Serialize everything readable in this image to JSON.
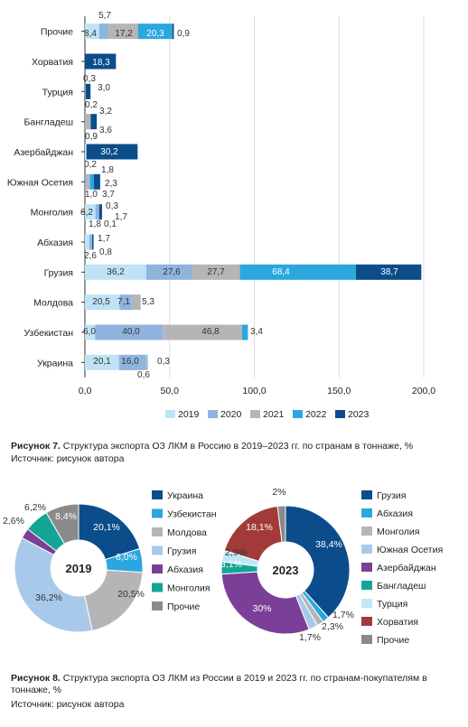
{
  "figure7": {
    "caption_label": "Рисунок 7.",
    "caption_text": "Структура экспорта ОЗ ЛКМ в Россию в 2019–2023 гг. по странам в тоннаже, %",
    "source": "Источник: рисунок автора"
  },
  "figure8": {
    "caption_label": "Рисунок 8.",
    "caption_text": "Структура экспорта ОЗ ЛКМ из России в 2019 и 2023 гг. по странам-покупателям в тоннаже, %",
    "source": "Источник: рисунок автора"
  },
  "chart_data": [
    {
      "type": "bar",
      "orientation": "horizontal",
      "stacked": true,
      "categories": [
        "Прочие",
        "Хорватия",
        "Турция",
        "Бангладеш",
        "Азербайджан",
        "Южная Осетия",
        "Монголия",
        "Абхазия",
        "Грузия",
        "Молдова",
        "Узбекистан",
        "Украина"
      ],
      "series": [
        {
          "name": "2019",
          "color": "#bfe3f5",
          "values": [
            8.4,
            0,
            0.3,
            0.2,
            0.9,
            0.2,
            6.2,
            2.6,
            36.2,
            20.5,
            6.0,
            20.1
          ]
        },
        {
          "name": "2020",
          "color": "#8fb4de",
          "values": [
            5.7,
            0,
            0,
            0,
            0,
            1.0,
            1.8,
            1.7,
            27.6,
            7.1,
            40.0,
            16.0
          ]
        },
        {
          "name": "2021",
          "color": "#b5b5b8",
          "values": [
            17.2,
            0,
            0,
            3.2,
            0,
            1.8,
            0.3,
            0,
            27.7,
            5.3,
            46.8,
            0.6
          ]
        },
        {
          "name": "2022",
          "color": "#2aa7df",
          "values": [
            20.3,
            0,
            0,
            0,
            0,
            2.3,
            0.1,
            0,
            68.4,
            0,
            3.4,
            0.3
          ]
        },
        {
          "name": "2023",
          "color": "#0b4d8a",
          "values": [
            0.9,
            18.3,
            3.0,
            3.6,
            30.2,
            3.7,
            1.7,
            0.8,
            38.7,
            0,
            0,
            0
          ]
        }
      ],
      "xticks": [
        "0,0",
        "50,0",
        "100,0",
        "150,0",
        "200,0"
      ],
      "xlim": [
        0,
        200
      ],
      "grid": true,
      "legend": "bottom",
      "labels": [
        {
          "text": "5,7",
          "row": 0
        },
        {
          "text": "8,4",
          "row": 0
        },
        {
          "text": "17,2",
          "row": 0
        },
        {
          "text": "20,3",
          "row": 0
        },
        {
          "text": "0,9",
          "row": 0
        },
        {
          "text": "18,3",
          "row": 1
        },
        {
          "text": "0,3",
          "row": 2
        },
        {
          "text": "3,0",
          "row": 2
        },
        {
          "text": "0,2",
          "row": 3
        },
        {
          "text": "3,2",
          "row": 3
        },
        {
          "text": "3,6",
          "row": 3
        },
        {
          "text": "0,9",
          "row": 4
        },
        {
          "text": "30,2",
          "row": 4
        },
        {
          "text": "0,2",
          "row": 5
        },
        {
          "text": "1,8",
          "row": 5
        },
        {
          "text": "2,3",
          "row": 5
        },
        {
          "text": "1,0",
          "row": 5
        },
        {
          "text": "3,7",
          "row": 5
        },
        {
          "text": "6,2",
          "row": 6
        },
        {
          "text": "0,3",
          "row": 6
        },
        {
          "text": "1,7",
          "row": 6
        },
        {
          "text": "1,8",
          "row": 6
        },
        {
          "text": "0,1",
          "row": 6
        },
        {
          "text": "1,7",
          "row": 7
        },
        {
          "text": "2,6",
          "row": 7
        },
        {
          "text": "0,8",
          "row": 7
        },
        {
          "text": "36,2",
          "row": 8
        },
        {
          "text": "27,6",
          "row": 8
        },
        {
          "text": "27,7",
          "row": 8
        },
        {
          "text": "68,4",
          "row": 8
        },
        {
          "text": "38,7",
          "row": 8
        },
        {
          "text": "20,5",
          "row": 9
        },
        {
          "text": "7,1",
          "row": 9
        },
        {
          "text": "5,3",
          "row": 9
        },
        {
          "text": "6,0",
          "row": 10
        },
        {
          "text": "40,0",
          "row": 10
        },
        {
          "text": "46,8",
          "row": 10
        },
        {
          "text": "3,4",
          "row": 10
        },
        {
          "text": "20,1",
          "row": 11
        },
        {
          "text": "16,0",
          "row": 11
        },
        {
          "text": "0,3",
          "row": 11
        },
        {
          "text": "0,6",
          "row": 11
        }
      ]
    },
    {
      "type": "pie",
      "center_label": "2019",
      "slices": [
        {
          "label": "Украина",
          "value": 20.1,
          "text": "20,1%",
          "color": "#0b4d8a"
        },
        {
          "label": "Узбекистан",
          "value": 6.0,
          "text": "6,0%",
          "color": "#2aa7df"
        },
        {
          "label": "Молдова",
          "value": 20.5,
          "text": "20,5%",
          "color": "#b5b5b8"
        },
        {
          "label": "Грузия",
          "value": 36.2,
          "text": "36,2%",
          "color": "#a9c9ea"
        },
        {
          "label": "Абхазия",
          "value": 2.6,
          "text": "2,6%",
          "color": "#7b3f98"
        },
        {
          "label": "Монголия",
          "value": 6.2,
          "text": "6,2%",
          "color": "#12a594"
        },
        {
          "label": "Прочие",
          "value": 8.4,
          "text": "8,4%",
          "color": "#8a8a8a"
        }
      ]
    },
    {
      "type": "pie",
      "center_label": "2023",
      "slices": [
        {
          "label": "Грузия",
          "value": 38.4,
          "text": "38,4%",
          "color": "#0b4d8a"
        },
        {
          "label": "Абхазия",
          "value": 1.7,
          "text": "1,7%",
          "color": "#2aa7df"
        },
        {
          "label": "Монголия",
          "value": 1.7,
          "text": "1,7%",
          "color": "#b5b5b8"
        },
        {
          "label": "Южная Осетия",
          "value": 2.3,
          "text": "2,3%",
          "color": "#a9c9ea"
        },
        {
          "label": "Азербайджан",
          "value": 30,
          "text": "30%",
          "color": "#7b3f98"
        },
        {
          "label": "Бангладеш",
          "value": 3.1,
          "text": "3,1%",
          "color": "#12a594"
        },
        {
          "label": "Турция",
          "value": 2.9,
          "text": "2,9%",
          "color": "#bfe8f7"
        },
        {
          "label": "Хорватия",
          "value": 18.1,
          "text": "18,1%",
          "color": "#a33a3a"
        },
        {
          "label": "Прочие",
          "value": 2,
          "text": "2%",
          "color": "#8a8a8a"
        }
      ]
    }
  ]
}
